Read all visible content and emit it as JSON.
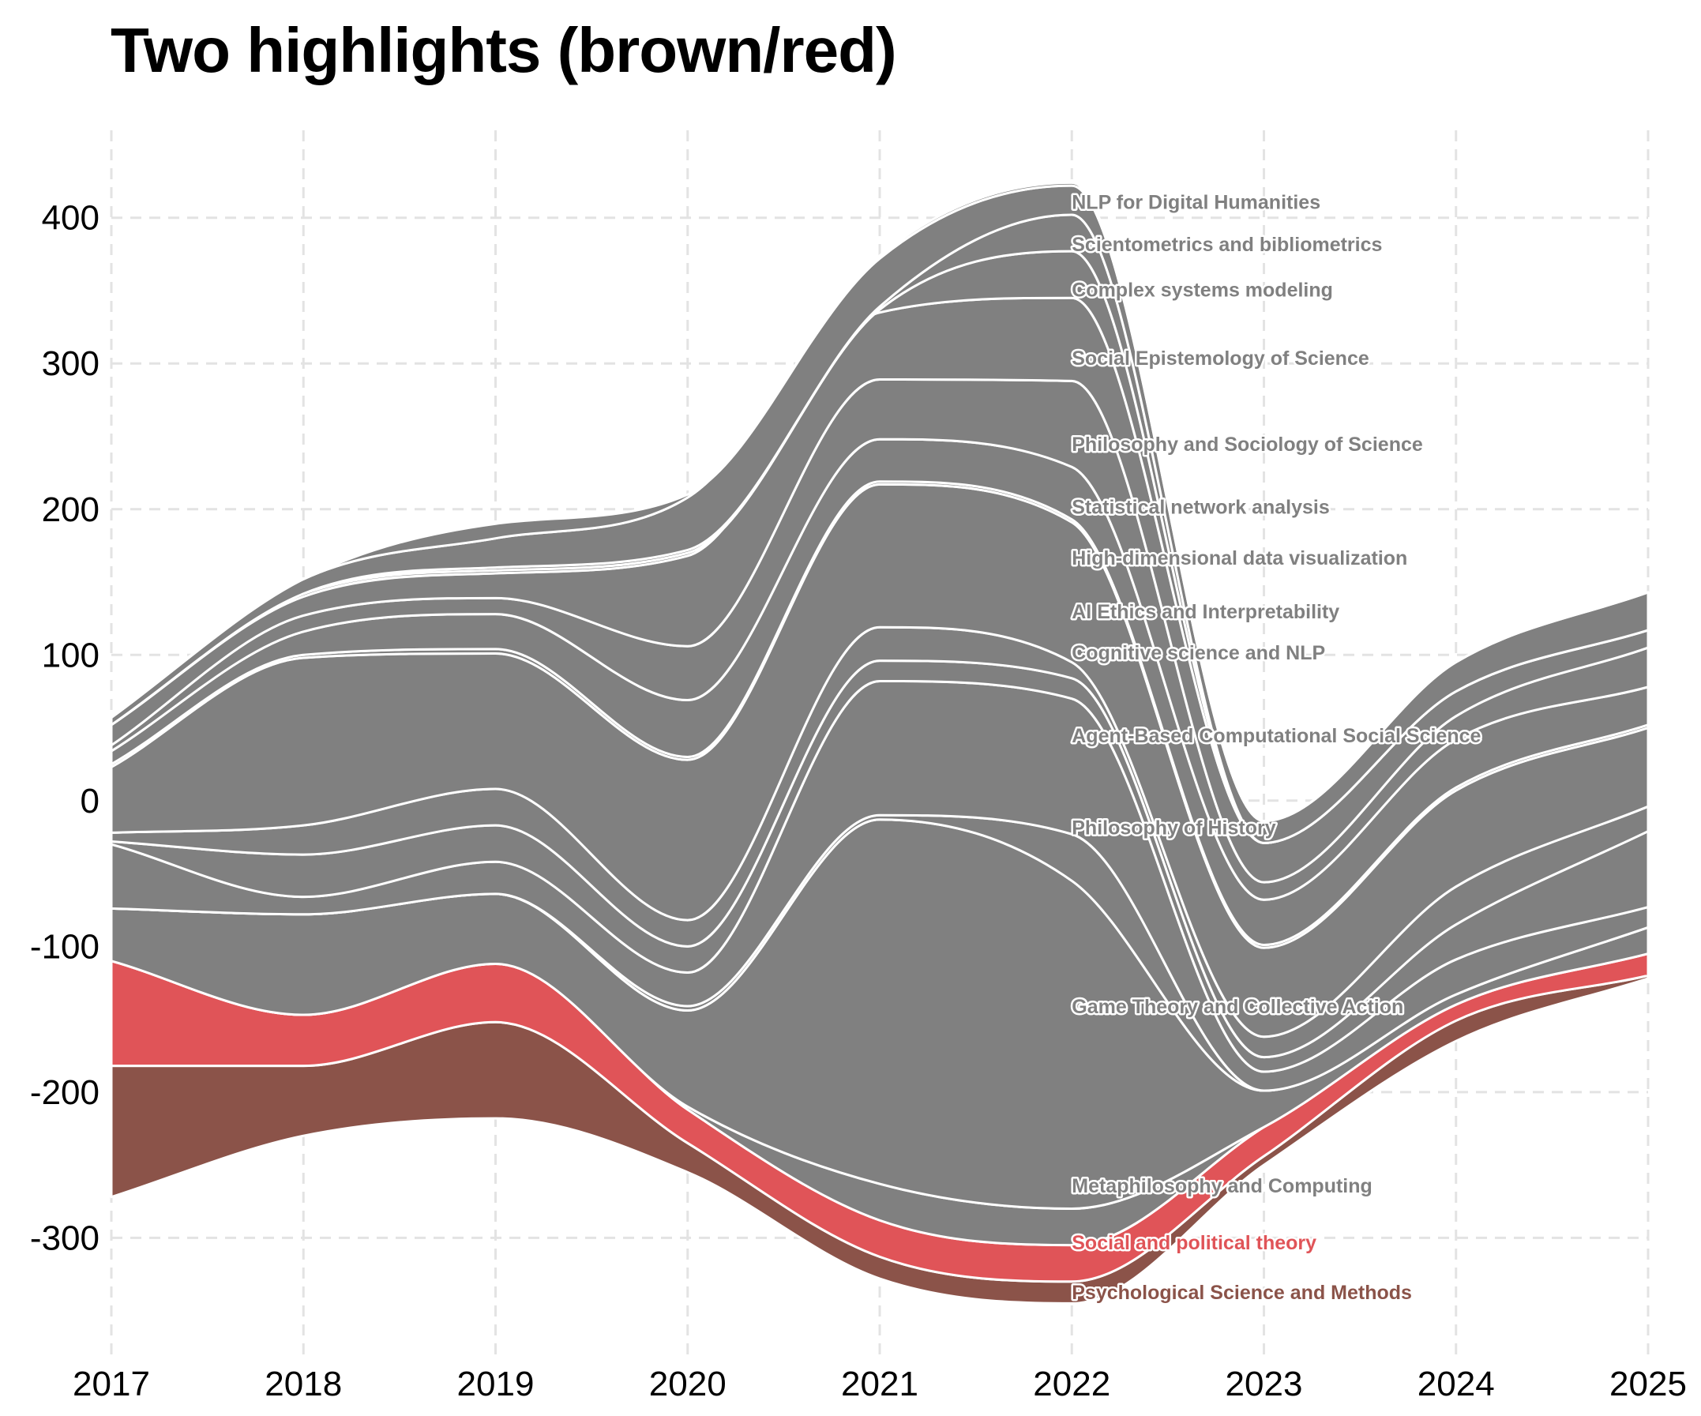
{
  "chart_data": {
    "type": "area",
    "title": "Two highlights (brown/red)",
    "xlabel": "",
    "ylabel": "",
    "x": [
      2017,
      2018,
      2019,
      2020,
      2021,
      2022,
      2023,
      2024,
      2025
    ],
    "ylim": [
      -380,
      460
    ],
    "yticks": [
      400,
      300,
      200,
      100,
      0,
      -100,
      -200,
      -300
    ],
    "ytick_labels": [
      "400",
      "300",
      "200",
      "100",
      "0",
      "-100",
      "-200",
      "-300"
    ],
    "grid": true,
    "legend": "none",
    "baseline": [
      -272,
      -230,
      -218,
      -255,
      -328,
      -345,
      -250,
      -165,
      -122
    ],
    "series": [
      {
        "name": "Psychological Science and Methods",
        "color": "#8b5349",
        "values": [
          90,
          48,
          66,
          20,
          15,
          15,
          6,
          14,
          2
        ]
      },
      {
        "name": "Social and political theory",
        "color": "#e05458",
        "values": [
          72,
          35,
          40,
          23,
          25,
          25,
          20,
          11,
          15
        ]
      },
      {
        "name": "Metaphilosophy and Computing",
        "color": "#808080",
        "values": [
          0,
          0,
          0,
          2,
          25,
          25,
          0,
          0,
          0
        ]
      },
      {
        "name": "Game Theory and Collective Action",
        "color": "#808080",
        "values": [
          36,
          69,
          48,
          66,
          250,
          225,
          25,
          7,
          18
        ]
      },
      {
        "name": "Philosophy of History",
        "color": "#808080",
        "values": [
          0,
          0,
          0,
          3,
          3,
          32,
          0,
          0,
          0
        ]
      },
      {
        "name": "Agent-Based Computational Social Science",
        "color": "#808080",
        "values": [
          44,
          12,
          22,
          23,
          92,
          93,
          13,
          24,
          14
        ]
      },
      {
        "name": "Cognitive science and NLP",
        "color": "#808080",
        "values": [
          2,
          29,
          25,
          18,
          14,
          14,
          10,
          24,
          52
        ]
      },
      {
        "name": "AI Ethics and Interpretability",
        "color": "#808080",
        "values": [
          6,
          20,
          25,
          18,
          23,
          11,
          14,
          26,
          17
        ]
      },
      {
        "name": "Statistical network analysis",
        "color": "#808080",
        "values": [
          45,
          115,
          93,
          110,
          98,
          96,
          61,
          66,
          54
        ]
      },
      {
        "name": "High-dimensional data visualization",
        "color": "#808080",
        "values": [
          2,
          2,
          3,
          2,
          2,
          2,
          2,
          2,
          2
        ]
      },
      {
        "name": "Philosophy and Sociology of Science",
        "color": "#808080",
        "values": [
          9,
          16,
          24,
          39,
          29,
          36,
          31,
          33,
          26
        ]
      },
      {
        "name": "Social Epistemology of Science",
        "color": "#808080",
        "values": [
          4,
          11,
          11,
          37,
          41,
          59,
          12,
          16,
          27
        ]
      },
      {
        "name": "Complex systems modeling",
        "color": "#808080",
        "values": [
          14,
          13,
          17,
          62,
          46,
          57,
          27,
          17,
          12
        ]
      },
      {
        "name": "Scientometrics and bibliometrics",
        "color": "#808080",
        "values": [
          0,
          2,
          2,
          2,
          2,
          32,
          0,
          0,
          0
        ]
      },
      {
        "name": "NLP for Digital Humanities",
        "color": "#808080",
        "values": [
          0,
          0,
          2,
          2,
          2,
          25,
          0,
          0,
          0
        ]
      },
      {
        "name": "",
        "color": "#808080",
        "values": [
          5,
          10,
          20,
          36,
          33,
          20,
          15,
          20,
          26
        ]
      },
      {
        "name": "",
        "color": "#808080",
        "values": [
          0,
          0,
          10,
          2,
          2,
          2,
          0,
          0,
          0
        ]
      }
    ],
    "annotations": [
      {
        "text": "NLP for Digital Humanities",
        "x": 2022,
        "y": 406,
        "color": "#808080"
      },
      {
        "text": "Scientometrics and bibliometrics",
        "x": 2022,
        "y": 377,
        "color": "#808080"
      },
      {
        "text": "Complex systems modeling",
        "x": 2022,
        "y": 346,
        "color": "#808080"
      },
      {
        "text": "Social Epistemology of Science",
        "x": 2022,
        "y": 299,
        "color": "#808080"
      },
      {
        "text": "Philosophy and Sociology of Science",
        "x": 2022,
        "y": 240,
        "color": "#808080"
      },
      {
        "text": "Statistical network analysis",
        "x": 2022,
        "y": 197,
        "color": "#808080"
      },
      {
        "text": "High-dimensional data visualization",
        "x": 2022,
        "y": 162,
        "color": "#808080"
      },
      {
        "text": "AI Ethics and Interpretability",
        "x": 2022,
        "y": 125,
        "color": "#808080"
      },
      {
        "text": "Cognitive science and NLP",
        "x": 2022,
        "y": 97,
        "color": "#808080"
      },
      {
        "text": "Agent-Based Computational Social Science",
        "x": 2022,
        "y": 40,
        "color": "#808080"
      },
      {
        "text": "Philosophy of History",
        "x": 2022,
        "y": -23,
        "color": "#808080"
      },
      {
        "text": "Game Theory and Collective Action",
        "x": 2022,
        "y": -146,
        "color": "#808080"
      },
      {
        "text": "Metaphilosophy and Computing",
        "x": 2022,
        "y": -269,
        "color": "#808080"
      },
      {
        "text": "Social and political theory",
        "x": 2022,
        "y": -308,
        "color": "#e05458"
      },
      {
        "text": "Psychological Science and Methods",
        "x": 2022,
        "y": -342,
        "color": "#8b5349"
      }
    ]
  }
}
